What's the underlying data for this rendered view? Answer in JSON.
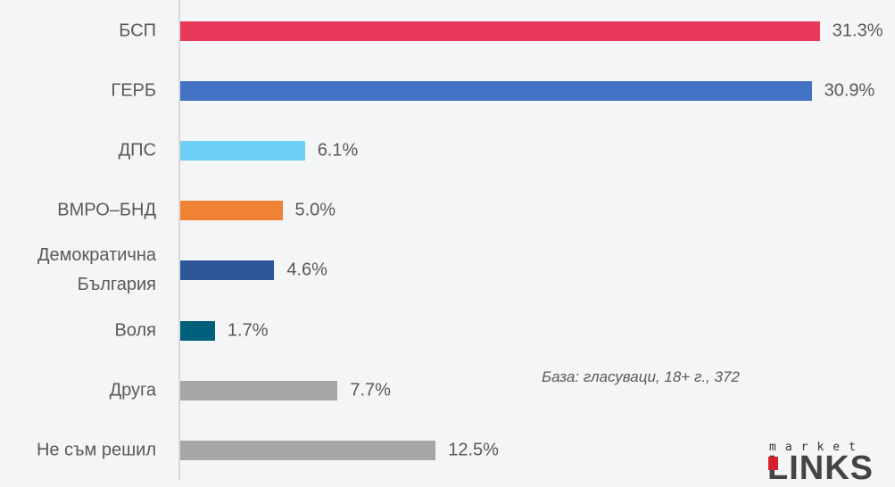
{
  "chart_data": {
    "type": "bar",
    "orientation": "horizontal",
    "categories": [
      "БСП",
      "ГЕРБ",
      "ДПС",
      "ВМРО–БНД",
      "Демократична България",
      "Воля",
      "Друга",
      "Не съм решил"
    ],
    "values": [
      31.3,
      30.9,
      6.1,
      5.0,
      4.6,
      1.7,
      7.7,
      12.5
    ],
    "value_labels": [
      "31.3%",
      "30.9%",
      "6.1%",
      "5.0%",
      "4.6%",
      "1.7%",
      "7.7%",
      "12.5%"
    ],
    "colors": [
      "#e8395a",
      "#4472c4",
      "#6fd0f5",
      "#f08236",
      "#2e5597",
      "#005f7a",
      "#a6a6a6",
      "#a6a6a6"
    ],
    "annotation": "База: гласуваци, 18+ г., 372",
    "logo": {
      "top": "market",
      "main": "LINKS"
    }
  }
}
